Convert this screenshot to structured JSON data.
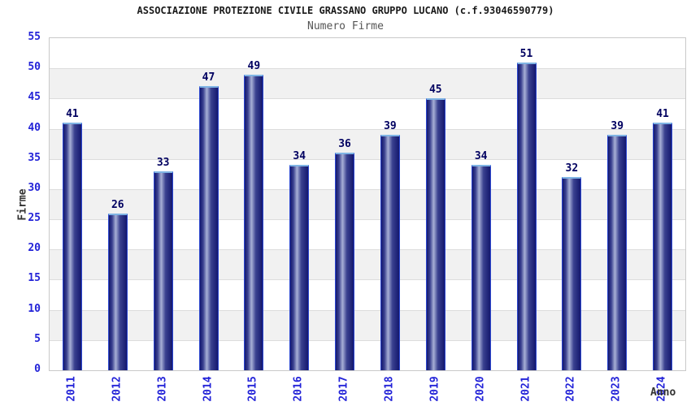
{
  "chart_data": {
    "type": "bar",
    "title": "ASSOCIAZIONE PROTEZIONE CIVILE GRASSANO GRUPPO LUCANO (c.f.93046590779)",
    "subtitle": "Numero Firme",
    "xlabel": "Anno",
    "ylabel": "Firme",
    "categories": [
      "2011",
      "2012",
      "2013",
      "2014",
      "2015",
      "2016",
      "2017",
      "2018",
      "2019",
      "2020",
      "2021",
      "2022",
      "2023",
      "2024"
    ],
    "values": [
      41,
      26,
      33,
      47,
      49,
      34,
      36,
      39,
      45,
      34,
      51,
      32,
      39,
      41
    ],
    "ylim": [
      0,
      55
    ],
    "ytick_step": 5,
    "yticks": [
      0,
      5,
      10,
      15,
      20,
      25,
      30,
      35,
      40,
      45,
      50,
      55
    ],
    "grid": true,
    "legend": "none",
    "colors": {
      "bar_gradient_dark": "#14186e",
      "bar_gradient_mid": "#3a4190",
      "bar_gradient_light": "#a8b0d6",
      "bar_stroke": "#2b46d0",
      "bar_top_cap": "#7fb4e4",
      "value_label": "#000060",
      "tick_label_blue": "#2323d8",
      "band_gray": "#f1f1f1",
      "band_white": "#ffffff",
      "grid_line": "#dcdcdc",
      "plot_border": "#c9c9c9",
      "title_color": "#1a1a1a",
      "subtitle_color": "#555555",
      "axis_title_color": "#333333"
    }
  }
}
